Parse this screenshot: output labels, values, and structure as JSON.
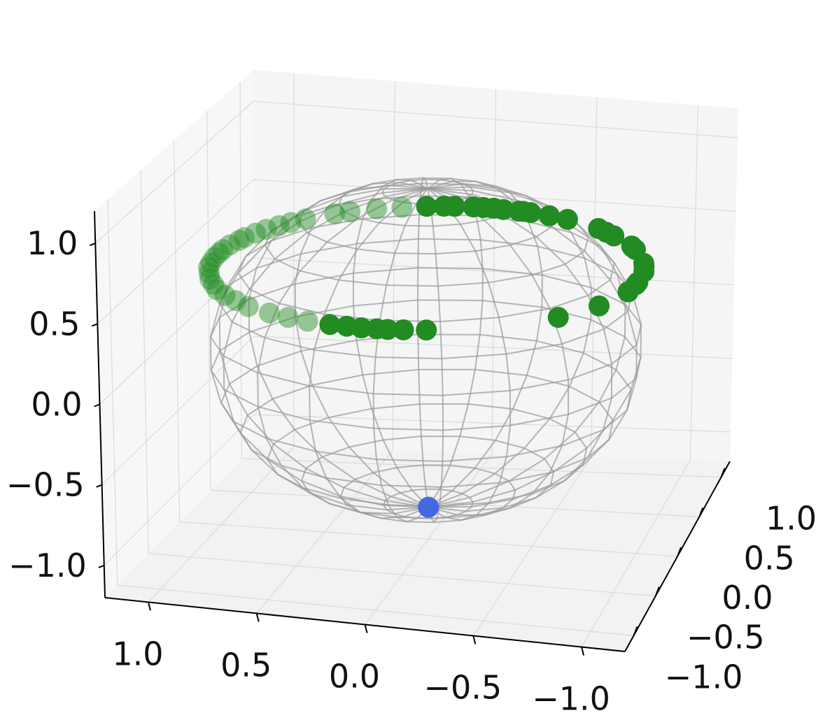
{
  "chart_data": {
    "type": "scatter",
    "projection": "3d",
    "title": "",
    "xlabel": "",
    "ylabel": "",
    "zlabel": "",
    "xlim": [
      -1.2,
      1.2
    ],
    "ylim": [
      -1.2,
      1.2
    ],
    "zlim": [
      -1.2,
      1.2
    ],
    "x_ticks": [
      "−1.0",
      "−0.5",
      "0.0",
      "0.5",
      "1.0"
    ],
    "y_ticks": [
      "−1.0",
      "−0.5",
      "0.0",
      "0.5",
      "1.0"
    ],
    "z_ticks": [
      "−1.0",
      "−0.5",
      "0.0",
      "0.5",
      "1.0"
    ],
    "grid": true,
    "sphere_wireframe": {
      "radius": 1,
      "color": "#999999"
    },
    "series": [
      {
        "color": "#228B22",
        "z": 0.5,
        "points": [
          {
            "x": -0.64,
            "y": -0.77
          },
          {
            "x": -0.42,
            "y": -0.91
          },
          {
            "x": -0.17,
            "y": -0.99
          },
          {
            "x": -0.05,
            "y": -1.0
          },
          {
            "x": -0.01,
            "y": -1.0
          },
          {
            "x": 0.16,
            "y": -0.99
          },
          {
            "x": 0.25,
            "y": -0.97
          },
          {
            "x": 0.29,
            "y": -0.96
          },
          {
            "x": 0.5,
            "y": -0.87
          },
          {
            "x": 0.53,
            "y": -0.85
          },
          {
            "x": 0.55,
            "y": -0.84
          },
          {
            "x": 0.69,
            "y": -0.72
          },
          {
            "x": 0.74,
            "y": -0.67
          },
          {
            "x": 0.79,
            "y": -0.62
          },
          {
            "x": 0.9,
            "y": -0.44
          },
          {
            "x": 0.94,
            "y": -0.34
          },
          {
            "x": 0.97,
            "y": -0.24
          },
          {
            "x": 0.98,
            "y": -0.2
          },
          {
            "x": 0.98,
            "y": -0.18
          },
          {
            "x": 0.99,
            "y": -0.1
          },
          {
            "x": 1.0,
            "y": -0.05
          },
          {
            "x": 1.0,
            "y": 0.0
          },
          {
            "x": 1.0,
            "y": 0.05
          },
          {
            "x": 0.99,
            "y": 0.14
          },
          {
            "x": 0.98,
            "y": 0.19
          },
          {
            "x": 0.96,
            "y": 0.27
          },
          {
            "x": 0.92,
            "y": 0.38
          },
          {
            "x": 0.87,
            "y": 0.49
          },
          {
            "x": 0.8,
            "y": 0.6
          },
          {
            "x": 0.75,
            "y": 0.66
          },
          {
            "x": 0.64,
            "y": 0.77
          },
          {
            "x": 0.57,
            "y": 0.82
          },
          {
            "x": 0.51,
            "y": 0.86
          },
          {
            "x": 0.44,
            "y": 0.9
          },
          {
            "x": 0.37,
            "y": 0.93
          },
          {
            "x": 0.29,
            "y": 0.96
          },
          {
            "x": 0.24,
            "y": 0.97
          },
          {
            "x": 0.16,
            "y": 0.99
          },
          {
            "x": 0.08,
            "y": 1.0
          },
          {
            "x": 0.02,
            "y": 1.0
          },
          {
            "x": -0.05,
            "y": 1.0
          },
          {
            "x": -0.14,
            "y": 0.99
          },
          {
            "x": -0.21,
            "y": 0.98
          },
          {
            "x": -0.3,
            "y": 0.95
          },
          {
            "x": -0.39,
            "y": 0.92
          },
          {
            "x": -0.47,
            "y": 0.88
          },
          {
            "x": -0.55,
            "y": 0.84
          },
          {
            "x": -0.63,
            "y": 0.78
          },
          {
            "x": -0.7,
            "y": 0.71
          },
          {
            "x": -0.78,
            "y": 0.63
          },
          {
            "x": -0.86,
            "y": 0.51
          },
          {
            "x": -0.91,
            "y": 0.41
          },
          {
            "x": -0.95,
            "y": 0.31
          },
          {
            "x": -0.98,
            "y": 0.2
          },
          {
            "x": -0.99,
            "y": 0.12
          },
          {
            "x": -1.0,
            "y": 0.05
          },
          {
            "x": -1.0,
            "y": -0.02
          },
          {
            "x": -1.0,
            "y": -0.07
          },
          {
            "x": -0.99,
            "y": -0.14
          },
          {
            "x": -0.97,
            "y": -0.24
          }
        ]
      },
      {
        "color": "#4169E1",
        "points": [
          {
            "x": 0.0,
            "y": 0.0,
            "z": -1.0
          }
        ]
      }
    ]
  }
}
